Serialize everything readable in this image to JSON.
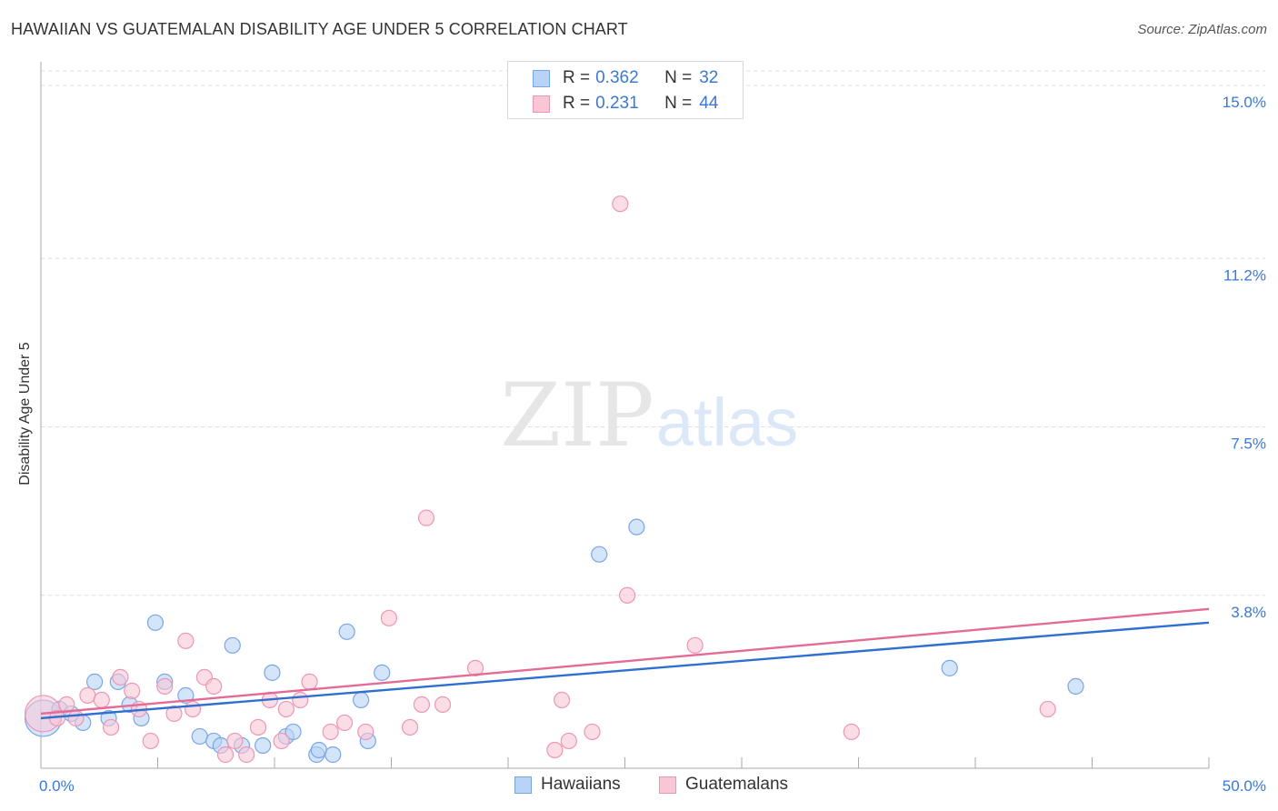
{
  "header": {
    "title": "HAWAIIAN VS GUATEMALAN DISABILITY AGE UNDER 5 CORRELATION CHART",
    "source": "Source: ZipAtlas.com"
  },
  "watermark": {
    "zip": "ZIP",
    "atlas": "atlas"
  },
  "legend": {
    "hawaiians": {
      "r_label": "R =",
      "r_value": "0.362",
      "n_label": "N =",
      "n_value": "32"
    },
    "guatemalans": {
      "r_label": "R =",
      "r_value": "0.231",
      "n_label": "N =",
      "n_value": "44"
    }
  },
  "bottom_legend": {
    "hawaiians": "Hawaiians",
    "guatemalans": "Guatemalans"
  },
  "colors": {
    "hawaiians_fill": "#b8d3f5",
    "hawaiians_stroke": "#7aa6e6",
    "hawaiians_line": "#2f6fd0",
    "guatemalans_fill": "#f9c6d5",
    "guatemalans_stroke": "#ec97b3",
    "guatemalans_line": "#e46b97",
    "tick_label": "#3b78d8",
    "grid": "#dddddd"
  },
  "chart_data": {
    "type": "scatter",
    "title": "HAWAIIAN VS GUATEMALAN DISABILITY AGE UNDER 5 CORRELATION CHART",
    "xlabel": "",
    "ylabel": "Disability Age Under 5",
    "xlim": [
      0,
      50
    ],
    "ylim": [
      0,
      15.6
    ],
    "x_tick_labels": [
      {
        "value": 0,
        "label": "0.0%"
      },
      {
        "value": 50,
        "label": "50.0%"
      }
    ],
    "y_ticks": [
      {
        "value": 3.8,
        "label": "3.8%"
      },
      {
        "value": 7.5,
        "label": "7.5%"
      },
      {
        "value": 11.2,
        "label": "11.2%"
      },
      {
        "value": 15.0,
        "label": "15.0%"
      }
    ],
    "x_minor_ticks": [
      5,
      10,
      15,
      20,
      25,
      30,
      35,
      40,
      45,
      50
    ],
    "series": [
      {
        "name": "Hawaiians",
        "r": 0.362,
        "n": 32,
        "trend": {
          "x0": 0,
          "y0": 1.1,
          "x1": 50,
          "y1": 3.2
        },
        "points": [
          {
            "x": 0.1,
            "y": 1.1,
            "big": true
          },
          {
            "x": 0.8,
            "y": 1.3
          },
          {
            "x": 1.3,
            "y": 1.2
          },
          {
            "x": 1.8,
            "y": 1.0
          },
          {
            "x": 2.3,
            "y": 1.9
          },
          {
            "x": 2.9,
            "y": 1.1
          },
          {
            "x": 3.3,
            "y": 1.9
          },
          {
            "x": 3.8,
            "y": 1.4
          },
          {
            "x": 4.3,
            "y": 1.1
          },
          {
            "x": 4.9,
            "y": 3.2
          },
          {
            "x": 5.3,
            "y": 1.9
          },
          {
            "x": 6.2,
            "y": 1.6
          },
          {
            "x": 6.8,
            "y": 0.7
          },
          {
            "x": 7.4,
            "y": 0.6
          },
          {
            "x": 7.7,
            "y": 0.5
          },
          {
            "x": 8.2,
            "y": 2.7
          },
          {
            "x": 8.6,
            "y": 0.5
          },
          {
            "x": 9.5,
            "y": 0.5
          },
          {
            "x": 9.9,
            "y": 2.1
          },
          {
            "x": 10.5,
            "y": 0.7
          },
          {
            "x": 10.8,
            "y": 0.8
          },
          {
            "x": 11.8,
            "y": 0.3
          },
          {
            "x": 11.9,
            "y": 0.4
          },
          {
            "x": 12.5,
            "y": 0.3
          },
          {
            "x": 13.1,
            "y": 3.0
          },
          {
            "x": 13.7,
            "y": 1.5
          },
          {
            "x": 14.0,
            "y": 0.6
          },
          {
            "x": 14.6,
            "y": 2.1
          },
          {
            "x": 23.9,
            "y": 4.7
          },
          {
            "x": 25.5,
            "y": 5.3
          },
          {
            "x": 38.9,
            "y": 2.2
          },
          {
            "x": 44.3,
            "y": 1.8
          }
        ]
      },
      {
        "name": "Guatemalans",
        "r": 0.231,
        "n": 44,
        "trend": {
          "x0": 0,
          "y0": 1.2,
          "x1": 50,
          "y1": 3.5
        },
        "points": [
          {
            "x": 0.1,
            "y": 1.2,
            "big": true
          },
          {
            "x": 0.7,
            "y": 1.1
          },
          {
            "x": 1.1,
            "y": 1.4
          },
          {
            "x": 1.5,
            "y": 1.1
          },
          {
            "x": 2.0,
            "y": 1.6
          },
          {
            "x": 2.6,
            "y": 1.5
          },
          {
            "x": 3.0,
            "y": 0.9
          },
          {
            "x": 3.4,
            "y": 2.0
          },
          {
            "x": 3.9,
            "y": 1.7
          },
          {
            "x": 4.2,
            "y": 1.3
          },
          {
            "x": 4.7,
            "y": 0.6
          },
          {
            "x": 5.3,
            "y": 1.8
          },
          {
            "x": 5.7,
            "y": 1.2
          },
          {
            "x": 6.2,
            "y": 2.8
          },
          {
            "x": 6.5,
            "y": 1.3
          },
          {
            "x": 7.0,
            "y": 2.0
          },
          {
            "x": 7.4,
            "y": 1.8
          },
          {
            "x": 7.9,
            "y": 0.3
          },
          {
            "x": 8.3,
            "y": 0.6
          },
          {
            "x": 8.8,
            "y": 0.3
          },
          {
            "x": 9.3,
            "y": 0.9
          },
          {
            "x": 9.8,
            "y": 1.5
          },
          {
            "x": 10.3,
            "y": 0.6
          },
          {
            "x": 10.5,
            "y": 1.3
          },
          {
            "x": 11.1,
            "y": 1.5
          },
          {
            "x": 11.5,
            "y": 1.9
          },
          {
            "x": 12.4,
            "y": 0.8
          },
          {
            "x": 13.0,
            "y": 1.0
          },
          {
            "x": 13.9,
            "y": 0.8
          },
          {
            "x": 14.9,
            "y": 3.3
          },
          {
            "x": 15.8,
            "y": 0.9
          },
          {
            "x": 16.3,
            "y": 1.4
          },
          {
            "x": 16.5,
            "y": 5.5
          },
          {
            "x": 17.2,
            "y": 1.4
          },
          {
            "x": 18.6,
            "y": 2.2
          },
          {
            "x": 22.0,
            "y": 0.4
          },
          {
            "x": 22.3,
            "y": 1.5
          },
          {
            "x": 22.6,
            "y": 0.6
          },
          {
            "x": 23.6,
            "y": 0.8
          },
          {
            "x": 24.8,
            "y": 12.4
          },
          {
            "x": 25.1,
            "y": 3.8
          },
          {
            "x": 28.0,
            "y": 2.7
          },
          {
            "x": 34.7,
            "y": 0.8
          },
          {
            "x": 43.1,
            "y": 1.3
          }
        ]
      }
    ]
  }
}
